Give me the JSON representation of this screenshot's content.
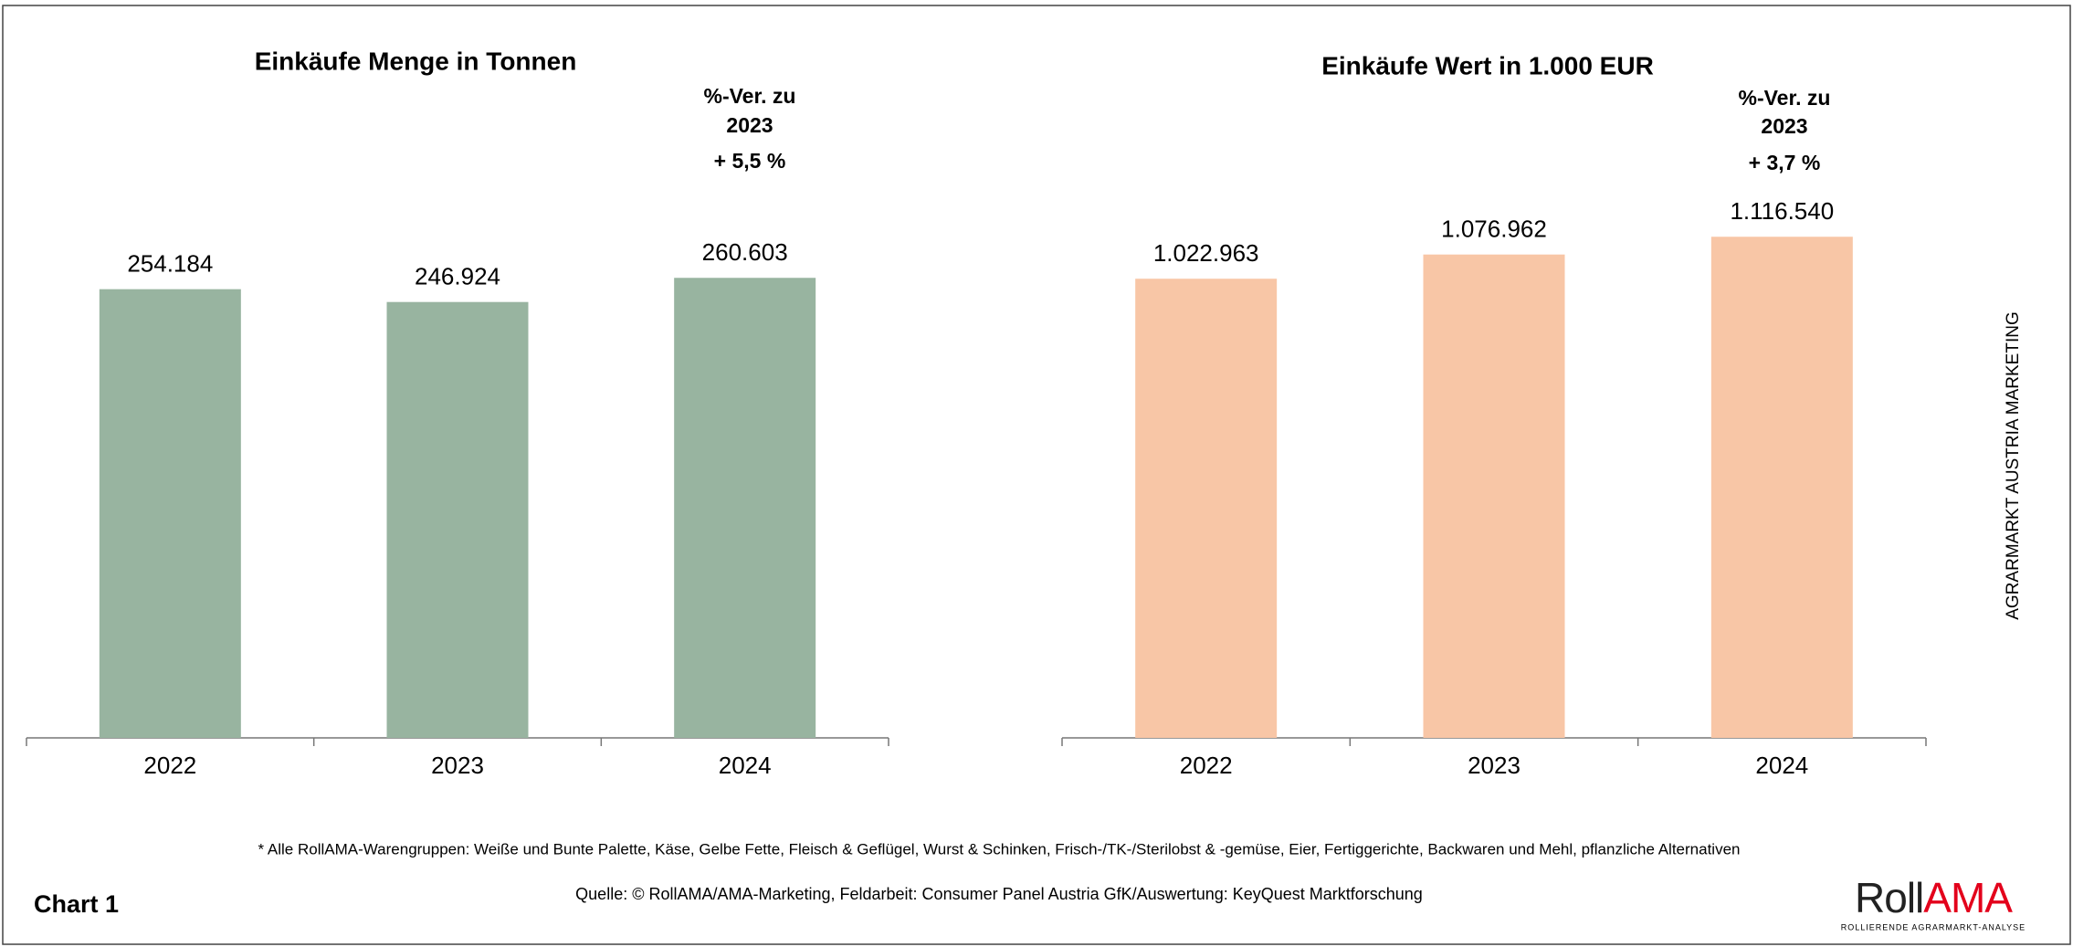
{
  "chart_data": [
    {
      "type": "bar",
      "title": "Einkäufe Menge in Tonnen",
      "annotation": [
        "%-Ver. zu",
        "2023",
        "+ 5,5 %"
      ],
      "categories": [
        "2022",
        "2023",
        "2024"
      ],
      "values": [
        254184,
        246924,
        260603
      ],
      "value_labels": [
        "254.184",
        "246.924",
        "260.603"
      ],
      "color": "#98b4a0",
      "ylim": [
        0,
        388000
      ]
    },
    {
      "type": "bar",
      "title": "Einkäufe Wert in 1.000 EUR",
      "annotation": [
        "%-Ver. zu",
        "2023",
        "+ 3,7 %"
      ],
      "categories": [
        "2022",
        "2023",
        "2024"
      ],
      "values": [
        1022963,
        1076962,
        1116540
      ],
      "value_labels": [
        "1.022.963",
        "1.076.962",
        "1.116.540"
      ],
      "color": "#f8c6a6",
      "ylim": [
        0,
        1526000
      ]
    }
  ],
  "footnote": "* Alle RollAMA-Warengruppen: Weiße und Bunte Palette, Käse, Gelbe Fette, Fleisch & Geflügel, Wurst & Schinken, Frisch-/TK-/Sterilobst & -gemüse, Eier, Fertiggerichte, Backwaren und Mehl, pflanzliche Alternativen",
  "source": "Quelle: © RollAMA/AMA-Marketing, Feldarbeit: Consumer Panel Austria GfK/Auswertung: KeyQuest Marktforschung",
  "chart_label": "Chart 1",
  "side_text": "AGRARMARKT AUSTRIA MARKETING",
  "logo": {
    "roll": "Roll",
    "ama": "AMA",
    "tagline": "ROLLIERENDE AGRARMARKT-ANALYSE"
  }
}
